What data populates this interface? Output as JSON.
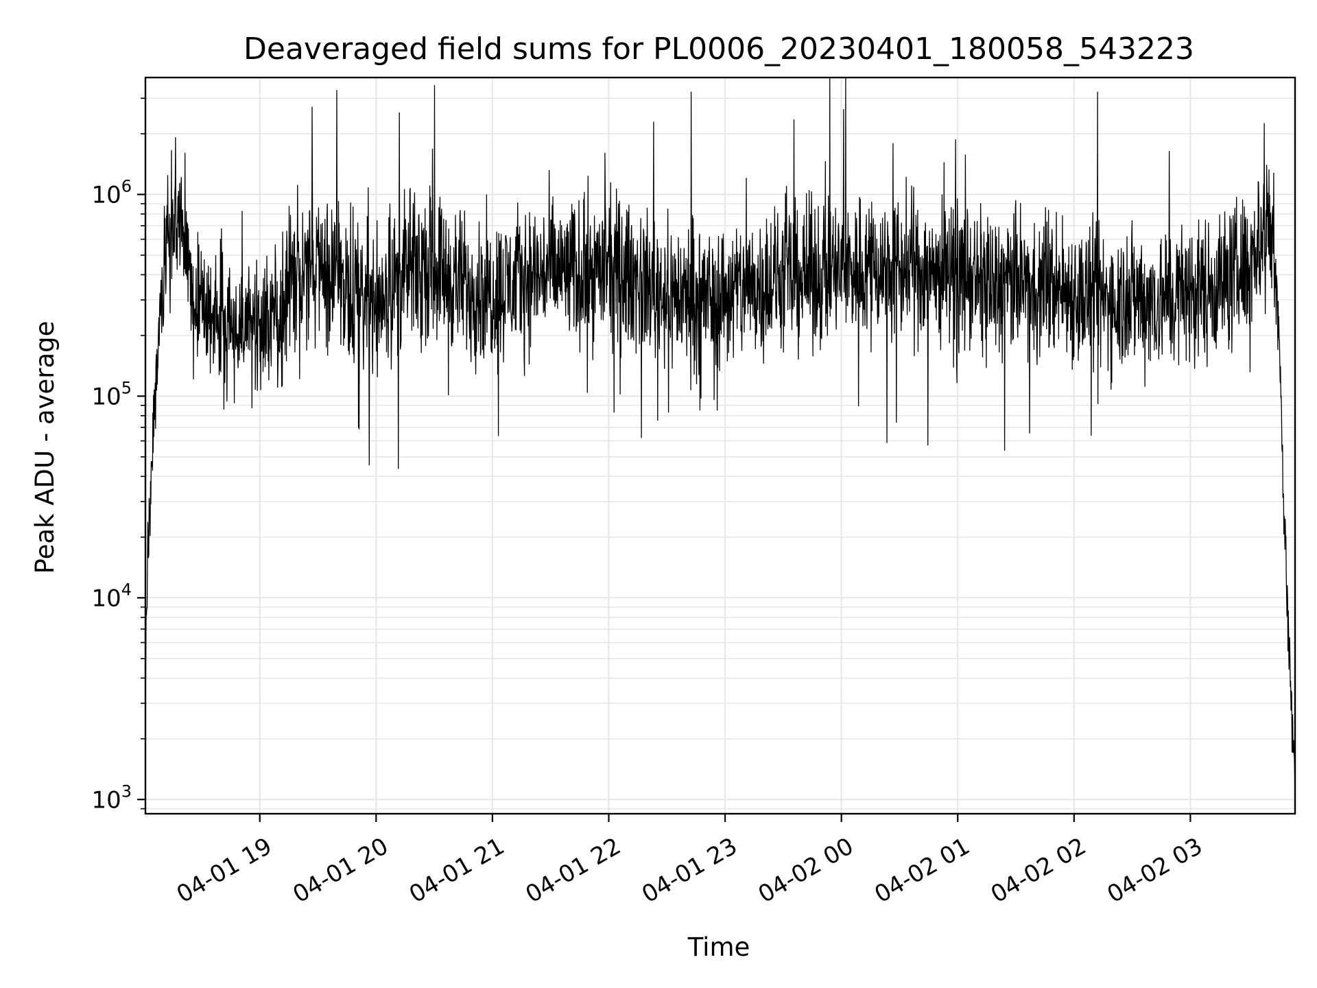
{
  "chart_data": {
    "type": "line",
    "title": "Deaveraged field sums for PL0006_20230401_180058_543223",
    "xlabel": "Time",
    "ylabel": "Peak ADU - average",
    "x_scale": "time",
    "y_scale": "log",
    "xlim": [
      "04-01 18:01",
      "04-02 03:54"
    ],
    "ylim": [
      850,
      3800000
    ],
    "grid": true,
    "x_tick_labels": [
      "04-01 19",
      "04-01 20",
      "04-01 21",
      "04-01 22",
      "04-01 23",
      "04-02 00",
      "04-02 01",
      "04-02 02",
      "04-02 03"
    ],
    "y_tick_labels": [
      {
        "base": "10",
        "exp": "3",
        "value": 1000
      },
      {
        "base": "10",
        "exp": "4",
        "value": 10000
      },
      {
        "base": "10",
        "exp": "5",
        "value": 100000
      },
      {
        "base": "10",
        "exp": "6",
        "value": 1000000
      }
    ],
    "series": [
      {
        "color": "#000000",
        "x": [
          "04-01 18:01",
          "04-01 18:03",
          "04-01 18:05",
          "04-01 18:08",
          "04-01 18:12",
          "04-01 18:16",
          "04-01 18:20",
          "04-01 18:25",
          "04-01 18:30",
          "04-01 18:40",
          "04-01 18:50",
          "04-01 19:00",
          "04-01 19:10",
          "04-01 19:20",
          "04-01 19:30",
          "04-01 19:45",
          "04-01 20:00",
          "04-01 20:15",
          "04-01 20:30",
          "04-01 20:45",
          "04-01 21:00",
          "04-01 21:15",
          "04-01 21:30",
          "04-01 21:45",
          "04-01 22:00",
          "04-01 22:15",
          "04-01 22:30",
          "04-01 22:45",
          "04-01 23:00",
          "04-01 23:15",
          "04-01 23:30",
          "04-01 23:45",
          "04-02 00:00",
          "04-02 00:15",
          "04-02 00:30",
          "04-02 00:45",
          "04-02 01:00",
          "04-02 01:15",
          "04-02 01:30",
          "04-02 01:45",
          "04-02 02:00",
          "04-02 02:15",
          "04-02 02:30",
          "04-02 02:45",
          "04-02 03:00",
          "04-02 03:10",
          "04-02 03:20",
          "04-02 03:30",
          "04-02 03:35",
          "04-02 03:40",
          "04-02 03:43",
          "04-02 03:46",
          "04-02 03:48",
          "04-02 03:50",
          "04-02 03:52",
          "04-02 03:54"
        ],
        "values": [
          4500,
          30000,
          60000,
          200000,
          500000,
          800000,
          600000,
          300000,
          250000,
          250000,
          220000,
          240000,
          280000,
          400000,
          450000,
          350000,
          300000,
          400000,
          450000,
          350000,
          330000,
          380000,
          420000,
          400000,
          430000,
          380000,
          330000,
          300000,
          320000,
          350000,
          380000,
          400000,
          420000,
          450000,
          430000,
          420000,
          400000,
          350000,
          360000,
          370000,
          320000,
          300000,
          310000,
          300000,
          330000,
          350000,
          380000,
          450000,
          600000,
          700000,
          600000,
          200000,
          30000,
          10000,
          3000,
          1200
        ]
      }
    ]
  }
}
